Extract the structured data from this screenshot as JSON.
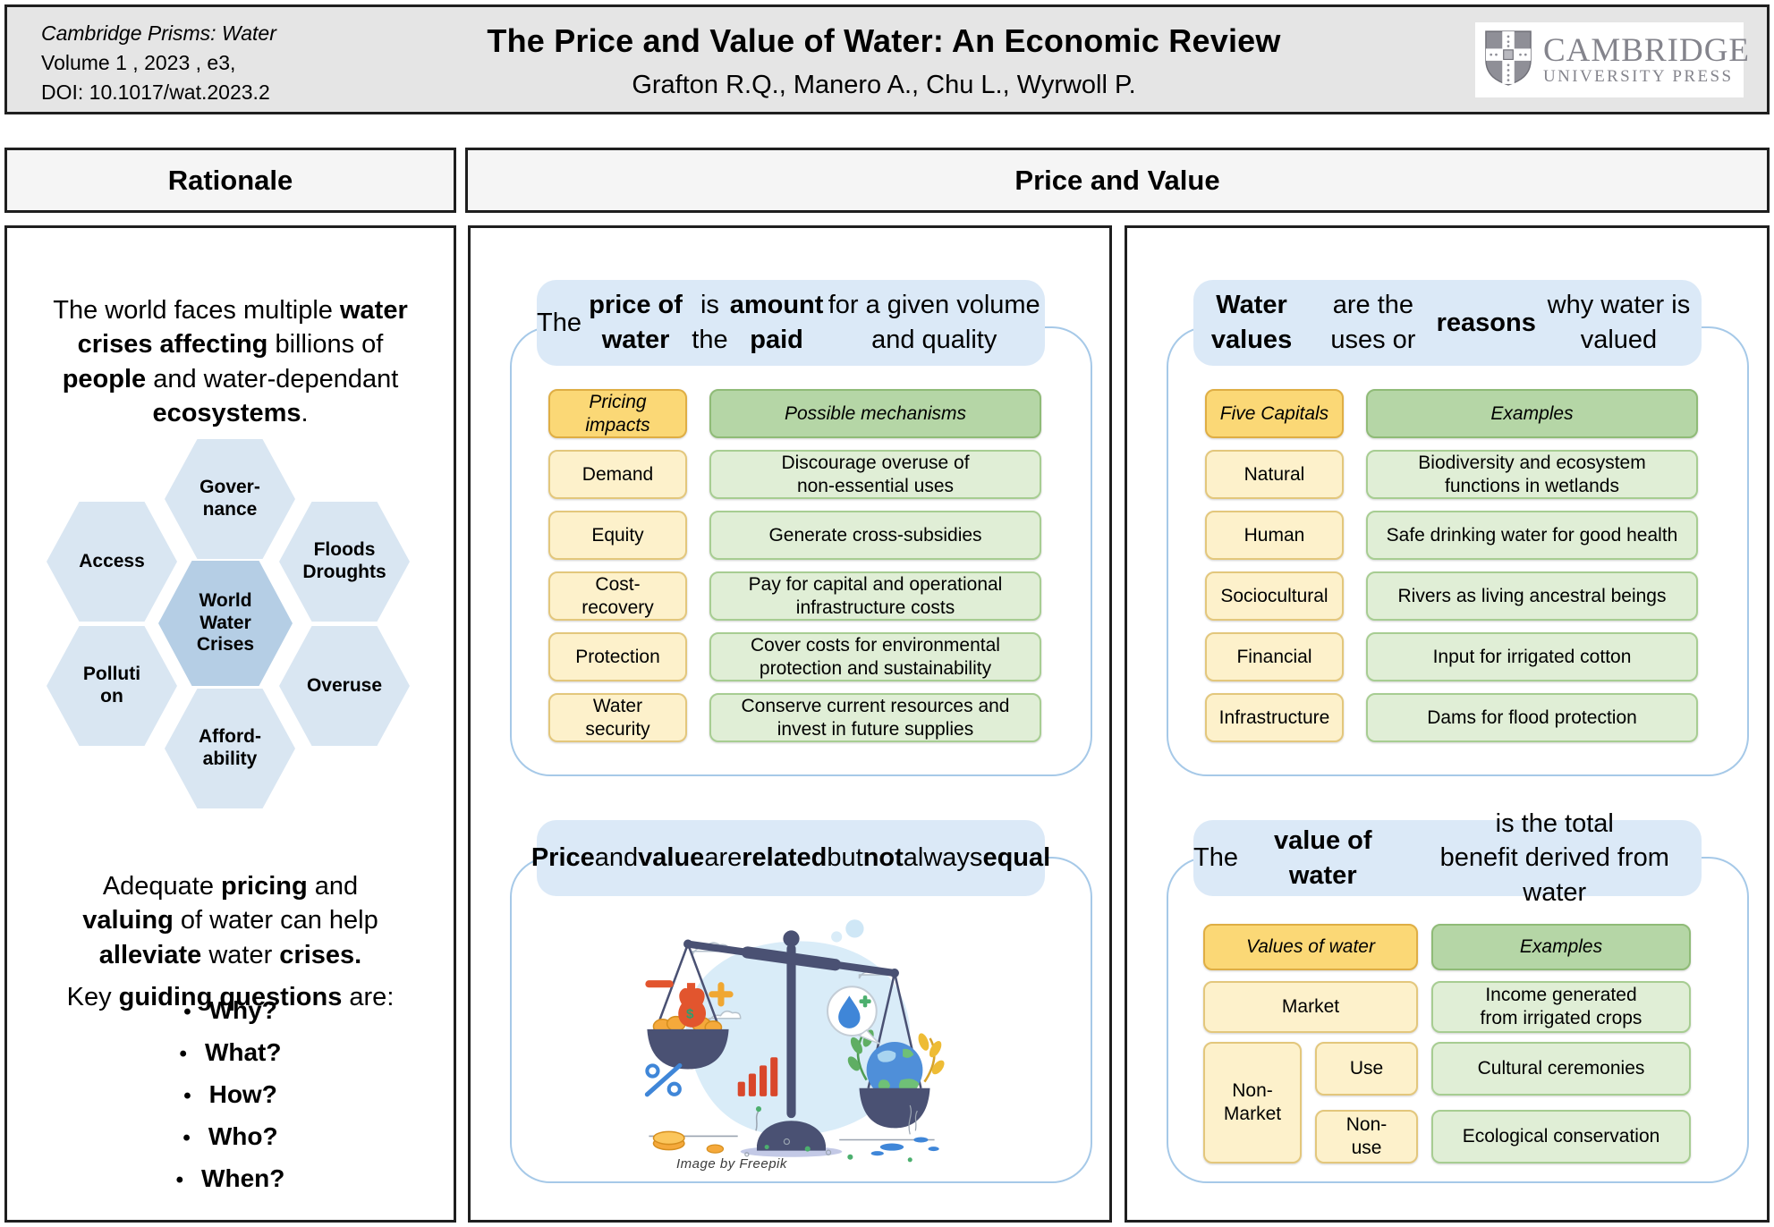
{
  "header": {
    "journal_lines": [
      "Cambridge Prisms: Water",
      "Volume 1 , 2023 , e3,",
      "DOI: 10.1017/wat.2023.2"
    ],
    "title": "The Price and Value of Water: An Economic Review",
    "authors": "Grafton R.Q.,  Manero A.,  Chu L.,  Wyrwoll P.",
    "publisher": {
      "line1": "CAMBRIDGE",
      "line2": "UNIVERSITY PRESS",
      "icon": "cambridge-shield-icon"
    }
  },
  "section_headers": {
    "rationale": "Rationale",
    "price_and_value": "Price and Value"
  },
  "rationale": {
    "intro_segments": [
      {
        "t": "The world faces multiple ",
        "b": false
      },
      {
        "t": "water\ncrises affecting",
        "b": true
      },
      {
        "t": " billions of\n",
        "b": false
      },
      {
        "t": "people",
        "b": true
      },
      {
        "t": " and water-dependant\n",
        "b": false
      },
      {
        "t": "ecosystems",
        "b": true
      },
      {
        "t": ".",
        "b": false
      }
    ],
    "hex_diagram": {
      "center": "World\nWater\nCrises",
      "around": [
        "Gover-\nnance",
        "Access",
        "Floods\nDroughts",
        "Polluti\non",
        "Overuse",
        "Afford-\nability"
      ]
    },
    "help_segments": [
      {
        "t": "Adequate ",
        "b": false
      },
      {
        "t": "pricing",
        "b": true
      },
      {
        "t": " and\n",
        "b": false
      },
      {
        "t": "valuing",
        "b": true
      },
      {
        "t": " of water can help\n",
        "b": false
      },
      {
        "t": "alleviate",
        "b": true
      },
      {
        "t": " water ",
        "b": false
      },
      {
        "t": "crises.",
        "b": true
      }
    ],
    "questions_lead_segments": [
      {
        "t": "Key ",
        "b": false
      },
      {
        "t": "guiding questions",
        "b": true
      },
      {
        "t": " are:",
        "b": false
      }
    ],
    "questions": [
      "Why?",
      "What?",
      "How?",
      "Who?",
      "When?"
    ]
  },
  "price_card": {
    "heading_segments": [
      {
        "t": "The ",
        "b": false
      },
      {
        "t": "price of water",
        "b": true
      },
      {
        "t": " is the ",
        "b": false
      },
      {
        "t": "amount\npaid",
        "b": true
      },
      {
        "t": " for a given volume and quality",
        "b": false
      }
    ],
    "col1_header": "Pricing\nimpacts",
    "col2_header": "Possible mechanisms",
    "rows": [
      {
        "impact": "Demand",
        "mechanism": "Discourage overuse of\nnon-essential uses"
      },
      {
        "impact": "Equity",
        "mechanism": "Generate cross-subsidies"
      },
      {
        "impact": "Cost-\nrecovery",
        "mechanism": "Pay for capital and operational\ninfrastructure costs"
      },
      {
        "impact": "Protection",
        "mechanism": "Cover costs for environmental\nprotection and sustainability"
      },
      {
        "impact": "Water\nsecurity",
        "mechanism": "Conserve current resources and\ninvest in future supplies"
      }
    ]
  },
  "relation_card": {
    "heading_segments": [
      {
        "t": "Price",
        "b": true
      },
      {
        "t": " and ",
        "b": false
      },
      {
        "t": "value",
        "b": true
      },
      {
        "t": " are\n",
        "b": false
      },
      {
        "t": "related",
        "b": true
      },
      {
        "t": " but ",
        "b": false
      },
      {
        "t": "not",
        "b": true
      },
      {
        "t": " always ",
        "b": false
      },
      {
        "t": "equal",
        "b": true
      }
    ],
    "illustration": "balance-scale-money-vs-earth-water",
    "image_credit": "Image  by Freepik"
  },
  "values_card": {
    "heading_segments": [
      {
        "t": "Water values",
        "b": true
      },
      {
        "t": " are the uses or\n",
        "b": false
      },
      {
        "t": "reasons",
        "b": true
      },
      {
        "t": " why water is valued",
        "b": false
      }
    ],
    "col1_header": "Five Capitals",
    "col2_header": "Examples",
    "rows": [
      {
        "capital": "Natural",
        "example": "Biodiversity and ecosystem\nfunctions in wetlands"
      },
      {
        "capital": "Human",
        "example": "Safe drinking water for good health"
      },
      {
        "capital": "Sociocultural",
        "example": "Rivers as living ancestral beings"
      },
      {
        "capital": "Financial",
        "example": "Input for irrigated cotton"
      },
      {
        "capital": "Infrastructure",
        "example": "Dams for flood protection"
      }
    ]
  },
  "total_value_card": {
    "heading_segments": [
      {
        "t": "The ",
        "b": false
      },
      {
        "t": "value of water",
        "b": true
      },
      {
        "t": " is the total\nbenefit derived from water",
        "b": false
      }
    ],
    "col1_header": "Values of water",
    "col2_header": "Examples",
    "market_label": "Market",
    "market_example": "Income generated\nfrom irrigated crops",
    "nonmarket_label": "Non-\nMarket",
    "use_label": "Use",
    "use_example": "Cultural ceremonies",
    "nonuse_label": "Non-\nuse",
    "nonuse_example": "Ecological conservation"
  },
  "colors": {
    "card_header_blue": "#dbe9f7",
    "card_border_blue": "#a6c9e8",
    "yellow_header": "#fbd876",
    "yellow_cell": "#fdf1cb",
    "green_header": "#b5d6a6",
    "green_cell": "#e0eed6",
    "hex_outer": "#d9e6f2",
    "hex_center": "#b5cee5",
    "panel_border": "#1f1f1f",
    "topbar_bg": "#e5e5e5",
    "logo_gray": "#84848c"
  }
}
